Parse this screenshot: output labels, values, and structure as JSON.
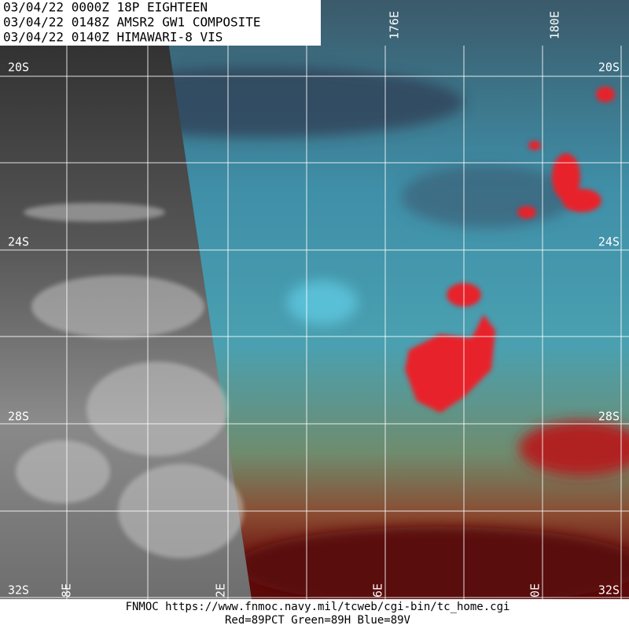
{
  "header": {
    "lines": [
      "03/04/22 0000Z  18P EIGHTEEN",
      "03/04/22 0148Z  AMSR2 GW1 COMPOSITE",
      "03/04/22 0140Z  HIMAWARI-8 VIS"
    ]
  },
  "map": {
    "lat_labels_left": [
      "20S",
      "24S",
      "28S",
      "32S"
    ],
    "lat_labels_right": [
      "20S",
      "24S",
      "28S",
      "32S"
    ],
    "lon_labels_top": [
      "176E",
      "180E"
    ],
    "lon_labels_bottom": [
      "8E",
      "2E",
      "6E",
      "0E"
    ]
  },
  "footer": {
    "lines": [
      "FNMOC https://www.fnmoc.navy.mil/tcweb/cgi-bin/tc_home.cgi",
      "Red=89PCT  Green=89H  Blue=89V"
    ]
  }
}
